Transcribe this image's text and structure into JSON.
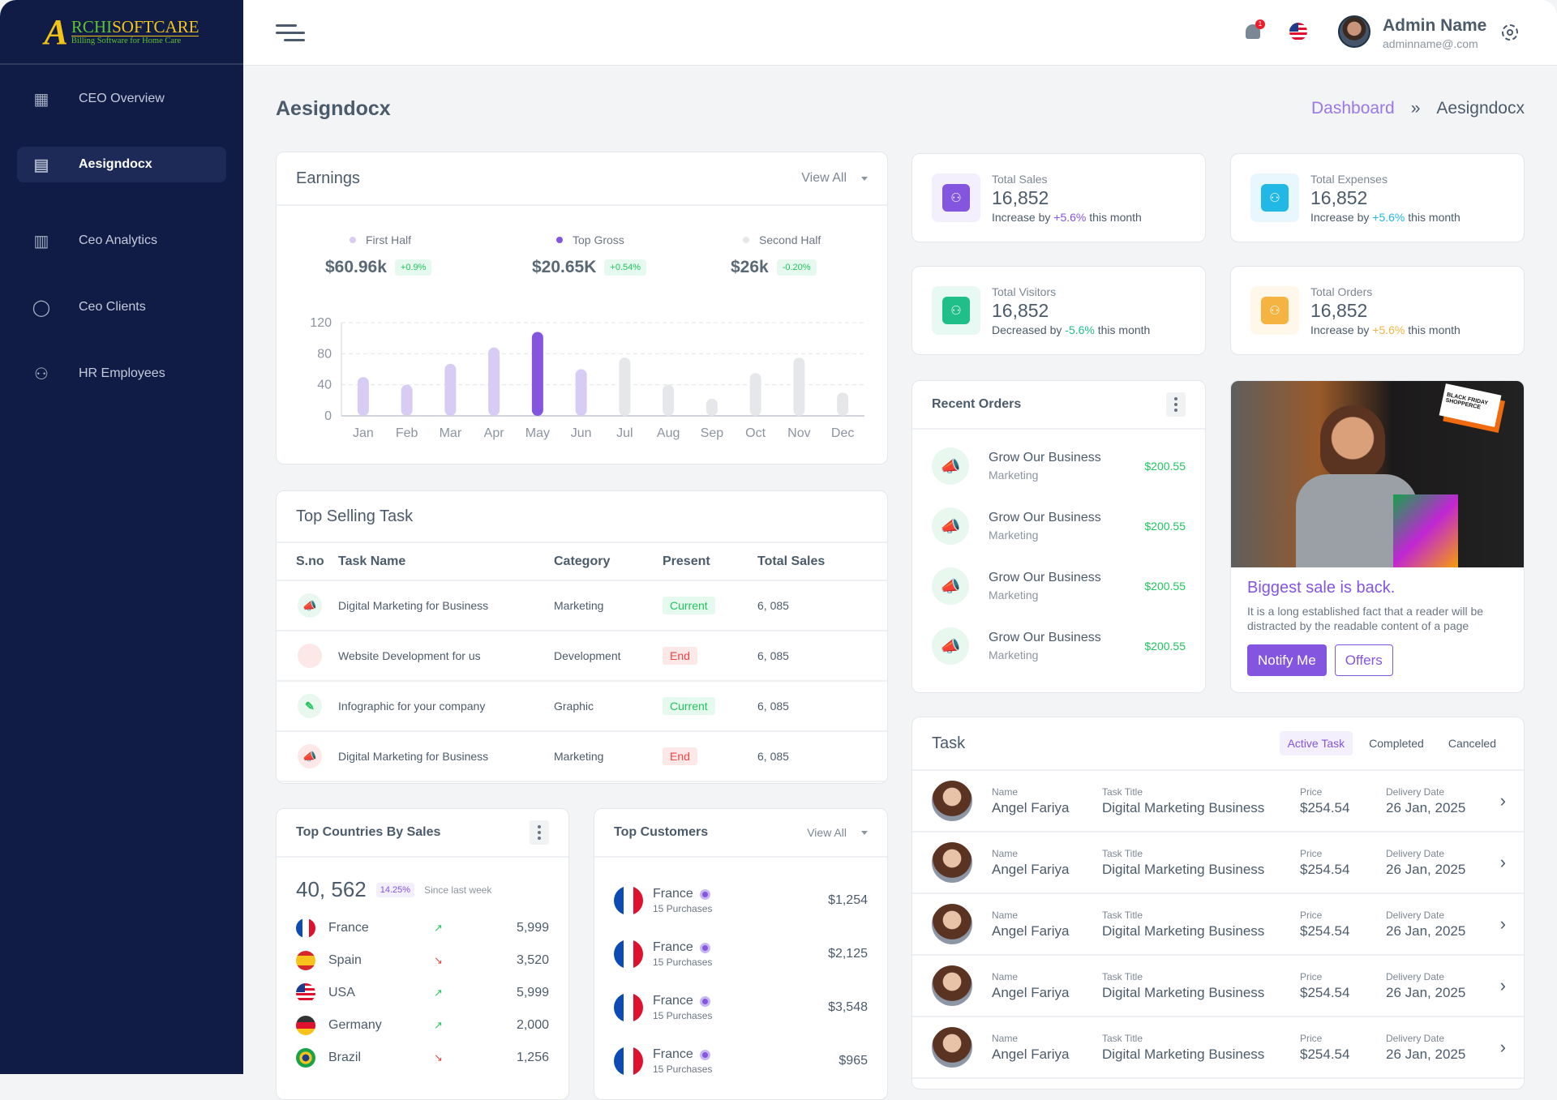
{
  "brand": {
    "logo_text": "ARCHISOFTCARE",
    "tagline": "Billing Software for Home Care"
  },
  "sidebar": {
    "items": [
      {
        "label": "CEO Overview",
        "icon": "grid-icon",
        "active": false
      },
      {
        "label": "Aesigndocx",
        "icon": "contact-book-icon",
        "active": true
      },
      {
        "label": "Ceo Analytics",
        "icon": "analytics-icon",
        "active": false
      },
      {
        "label": "Ceo Clients",
        "icon": "user-icon",
        "active": false
      },
      {
        "label": "HR Employees",
        "icon": "team-icon",
        "active": false
      }
    ]
  },
  "header": {
    "notification_count": "1",
    "user_name": "Admin Name",
    "user_email": "adminname@.com"
  },
  "page": {
    "title": "Aesigndocx",
    "breadcrumb": [
      "Dashboard",
      "Aesigndocx"
    ]
  },
  "colors": {
    "accent": "#8456e0",
    "sidebar": "#101c45",
    "green": "#22c55e",
    "red": "#ef4444",
    "cyan": "#22b8e6",
    "orange": "#f5b342"
  },
  "earnings": {
    "title": "Earnings",
    "view_all": "View All",
    "legend": [
      {
        "label": "First Half",
        "value": "$60.96k",
        "change": "+0.9%",
        "color": "#d8ccf5"
      },
      {
        "label": "Top Gross",
        "value": "$20.65K",
        "change": "+0.54%",
        "color": "#8456e0"
      },
      {
        "label": "Second Half",
        "value": "$26k",
        "change": "-0.20%",
        "color": "#e5e7eb"
      }
    ]
  },
  "chart_data": {
    "type": "bar",
    "categories": [
      "Jan",
      "Feb",
      "Mar",
      "Apr",
      "May",
      "Jun",
      "Jul",
      "Aug",
      "Sep",
      "Oct",
      "Nov",
      "Dec"
    ],
    "values": [
      50,
      40,
      67,
      88,
      108,
      60,
      75,
      40,
      22,
      55,
      75,
      30
    ],
    "groups": [
      "First Half",
      "First Half",
      "First Half",
      "First Half",
      "Top Gross",
      "First Half",
      "Second Half",
      "Second Half",
      "Second Half",
      "Second Half",
      "Second Half",
      "Second Half"
    ],
    "yticks": [
      0,
      40,
      80,
      120
    ],
    "ylim": [
      0,
      120
    ],
    "grid": true
  },
  "stats": [
    {
      "label": "Total Sales",
      "value": "16,852",
      "prefix": "Increase by ",
      "change": "+5.6%",
      "suffix": " this month",
      "color": "#8456e0",
      "bg": "#f3effd"
    },
    {
      "label": "Total Expenses",
      "value": "16,852",
      "prefix": "Increase by ",
      "change": "+5.6%",
      "suffix": " this month",
      "color": "#22b8e6",
      "bg": "#e8f7fd"
    },
    {
      "label": "Total Visitors",
      "value": "16,852",
      "prefix": "Decreased by ",
      "change": "-5.6%",
      "suffix": " this month",
      "color": "#20bf8a",
      "bg": "#e8f8f2"
    },
    {
      "label": "Total Orders",
      "value": "16,852",
      "prefix": "Increase by ",
      "change": "+5.6%",
      "suffix": " this month",
      "color": "#f5b342",
      "bg": "#fef7ea"
    }
  ],
  "top_selling": {
    "title": "Top Selling Task",
    "columns": [
      "S.no",
      "Task Name",
      "Category",
      "Present",
      "Total Sales"
    ],
    "rows": [
      {
        "icon": "megaphone-icon",
        "tone": "green",
        "name": "Digital Marketing for Business",
        "category": "Marketing",
        "status": "Current",
        "sales": "6, 085"
      },
      {
        "icon": "code-icon",
        "tone": "red",
        "name": "Website Development for us",
        "category": "Development",
        "status": "End",
        "sales": "6, 085"
      },
      {
        "icon": "pen-tool-icon",
        "tone": "green",
        "name": "Infographic for your company",
        "category": "Graphic",
        "status": "Current",
        "sales": "6, 085"
      },
      {
        "icon": "megaphone-icon",
        "tone": "red",
        "name": "Digital Marketing for Business",
        "category": "Marketing",
        "status": "End",
        "sales": "6, 085"
      }
    ]
  },
  "countries": {
    "title": "Top Countries By Sales",
    "total": "40, 562",
    "change": "14.25%",
    "since": "Since last week",
    "rows": [
      {
        "name": "France",
        "flag": "fr",
        "trend": "up",
        "value": "5,999"
      },
      {
        "name": "Spain",
        "flag": "es",
        "trend": "down",
        "value": "3,520"
      },
      {
        "name": "USA",
        "flag": "us",
        "trend": "up",
        "value": "5,999"
      },
      {
        "name": "Germany",
        "flag": "de",
        "trend": "up",
        "value": "2,000"
      },
      {
        "name": "Brazil",
        "flag": "br",
        "trend": "down",
        "value": "1,256"
      }
    ]
  },
  "customers": {
    "title": "Top Customers",
    "view_all": "View All",
    "rows": [
      {
        "name": "France",
        "purchases": "15 Purchases",
        "amount": "$1,254"
      },
      {
        "name": "France",
        "purchases": "15 Purchases",
        "amount": "$2,125"
      },
      {
        "name": "France",
        "purchases": "15 Purchases",
        "amount": "$3,548"
      },
      {
        "name": "France",
        "purchases": "15 Purchases",
        "amount": "$965"
      }
    ]
  },
  "recent_orders": {
    "title": "Recent Orders",
    "rows": [
      {
        "title": "Grow Our Business",
        "sub": "Marketing",
        "amount": "$200.55"
      },
      {
        "title": "Grow Our Business",
        "sub": "Marketing",
        "amount": "$200.55"
      },
      {
        "title": "Grow Our Business",
        "sub": "Marketing",
        "amount": "$200.55"
      },
      {
        "title": "Grow Our Business",
        "sub": "Marketing",
        "amount": "$200.55"
      }
    ]
  },
  "promo": {
    "title": "Biggest sale is back.",
    "text": "It is a long established fact that a reader will be distracted by the readable content of a page",
    "primary": "Notify Me",
    "secondary": "Offers",
    "image_text": "BLACK FRIDAY SHOPPERCE"
  },
  "tasks": {
    "title": "Task",
    "tabs": [
      "Active Task",
      "Completed",
      "Canceled"
    ],
    "labels": {
      "name": "Name",
      "title": "Task Title",
      "price": "Price",
      "date": "Delivery Date"
    },
    "rows": [
      {
        "name": "Angel Fariya",
        "title": "Digital Marketing Business",
        "price": "$254.54",
        "date": "26 Jan, 2025"
      },
      {
        "name": "Angel Fariya",
        "title": "Digital Marketing Business",
        "price": "$254.54",
        "date": "26 Jan, 2025"
      },
      {
        "name": "Angel Fariya",
        "title": "Digital Marketing Business",
        "price": "$254.54",
        "date": "26 Jan, 2025"
      },
      {
        "name": "Angel Fariya",
        "title": "Digital Marketing Business",
        "price": "$254.54",
        "date": "26 Jan, 2025"
      },
      {
        "name": "Angel Fariya",
        "title": "Digital Marketing Business",
        "price": "$254.54",
        "date": "26 Jan, 2025"
      }
    ]
  }
}
